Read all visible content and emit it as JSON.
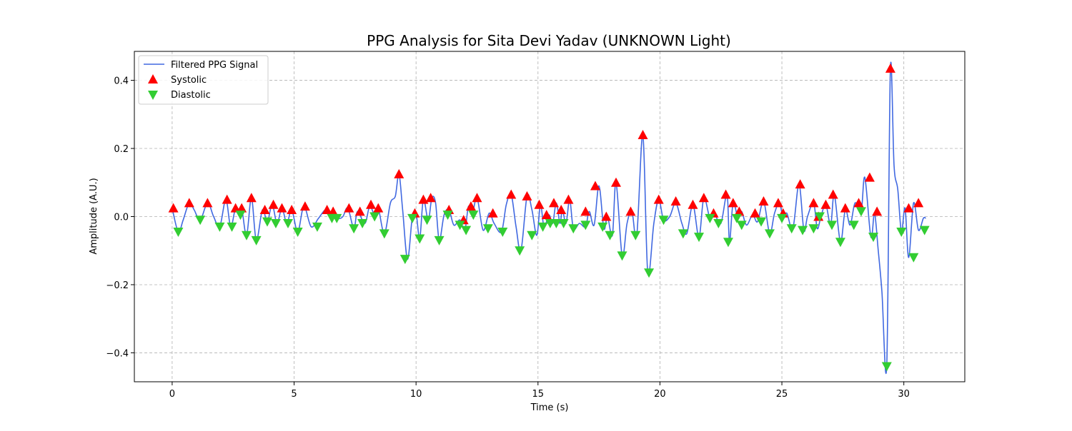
{
  "chart_data": {
    "type": "line",
    "title": "PPG Analysis for Sita Devi Yadav (UNKNOWN Light)",
    "xlabel": "Time (s)",
    "ylabel": "Amplitude (A.U.)",
    "xlim": [
      -1.55,
      32.5
    ],
    "ylim": [
      -0.485,
      0.485
    ],
    "xticks": [
      0,
      5,
      10,
      15,
      20,
      25,
      30
    ],
    "xtick_labels": [
      "0",
      "5",
      "10",
      "15",
      "20",
      "25",
      "30"
    ],
    "yticks": [
      -0.4,
      -0.2,
      0.0,
      0.2,
      0.4
    ],
    "ytick_labels": [
      "−0.4",
      "−0.2",
      "0.0",
      "0.2",
      "0.4"
    ],
    "grid": true,
    "legend_position": "upper-left",
    "colors": {
      "signal": "#4169e1",
      "systolic": "#ff0000",
      "diastolic": "#32cd32"
    },
    "series": [
      {
        "name": "Filtered PPG Signal",
        "style": "line",
        "x": [
          0.0,
          0.25,
          0.45,
          0.7,
          0.9,
          1.15,
          1.45,
          1.7,
          1.95,
          2.2,
          2.4,
          2.6,
          2.75,
          2.85,
          3.05,
          3.25,
          3.45,
          3.7,
          3.9,
          4.1,
          4.3,
          4.5,
          4.7,
          4.9,
          5.15,
          5.4,
          5.7,
          6.0,
          6.3,
          6.5,
          6.6,
          6.8,
          7.0,
          7.2,
          7.45,
          7.6,
          7.9,
          8.1,
          8.3,
          8.45,
          8.7,
          8.95,
          9.15,
          9.3,
          9.45,
          9.65,
          9.85,
          10.0,
          10.15,
          10.3,
          10.5,
          10.65,
          10.8,
          10.95,
          11.15,
          11.35,
          11.55,
          11.8,
          12.0,
          12.15,
          12.3,
          12.5,
          12.75,
          13.0,
          13.2,
          13.5,
          13.7,
          13.9,
          14.1,
          14.3,
          14.55,
          14.75,
          14.95,
          15.1,
          15.25,
          15.45,
          15.6,
          15.75,
          15.9,
          16.0,
          16.15,
          16.3,
          16.45,
          16.7,
          16.95,
          17.1,
          17.3,
          17.5,
          17.7,
          17.85,
          18.05,
          18.2,
          18.45,
          18.65,
          18.85,
          19.05,
          19.3,
          19.5,
          19.75,
          19.95,
          20.15,
          20.4,
          20.65,
          20.9,
          21.1,
          21.35,
          21.6,
          21.8,
          22.05,
          22.25,
          22.5,
          22.75,
          22.85,
          23.0,
          23.2,
          23.35,
          23.55,
          23.8,
          24.0,
          24.25,
          24.5,
          24.7,
          24.9,
          25.05,
          25.2,
          25.45,
          25.7,
          25.9,
          26.05,
          26.3,
          26.45,
          26.6,
          26.8,
          27.0,
          27.15,
          27.4,
          27.6,
          27.8,
          28.0,
          28.25,
          28.4,
          28.65,
          28.8,
          28.95,
          29.1,
          29.3,
          29.45,
          29.6,
          29.75,
          29.9,
          30.05,
          30.2,
          30.4,
          30.6,
          30.8,
          30.9
        ],
        "y": [
          0.025,
          -0.045,
          -0.01,
          0.04,
          0.02,
          -0.01,
          0.04,
          0.0,
          -0.03,
          0.05,
          -0.03,
          0.025,
          0.005,
          0.025,
          -0.055,
          0.055,
          -0.07,
          0.02,
          -0.015,
          0.035,
          -0.02,
          0.025,
          -0.02,
          0.02,
          -0.045,
          0.03,
          -0.03,
          -0.005,
          0.02,
          -0.005,
          0.015,
          -0.005,
          0.0,
          0.025,
          -0.035,
          0.015,
          -0.02,
          0.03,
          0.005,
          0.025,
          -0.05,
          0.04,
          0.06,
          0.125,
          0.02,
          -0.125,
          0.0,
          0.01,
          -0.065,
          0.05,
          -0.01,
          0.055,
          0.04,
          -0.07,
          0.005,
          0.02,
          -0.025,
          -0.01,
          -0.04,
          0.03,
          0.005,
          0.055,
          -0.04,
          0.01,
          -0.02,
          -0.045,
          0.035,
          0.065,
          -0.03,
          -0.1,
          0.06,
          0.02,
          -0.055,
          0.035,
          -0.03,
          0.005,
          -0.02,
          0.04,
          -0.02,
          0.02,
          -0.02,
          0.05,
          -0.035,
          -0.02,
          -0.03,
          0.015,
          -0.025,
          0.09,
          -0.035,
          0.0,
          -0.055,
          0.1,
          -0.115,
          -0.02,
          0.015,
          -0.055,
          0.24,
          -0.165,
          -0.02,
          0.05,
          -0.01,
          0.0,
          0.04,
          -0.02,
          -0.05,
          0.035,
          -0.06,
          0.055,
          -0.005,
          0.005,
          -0.02,
          0.065,
          -0.075,
          0.04,
          -0.005,
          0.015,
          -0.025,
          0.005,
          -0.015,
          0.045,
          -0.05,
          0.01,
          0.04,
          -0.005,
          0.01,
          -0.035,
          0.095,
          -0.04,
          0.0,
          0.04,
          -0.035,
          0.0,
          0.035,
          -0.025,
          0.065,
          -0.075,
          0.02,
          -0.025,
          0.04,
          0.015,
          0.115,
          -0.06,
          0.01,
          -0.1,
          -0.22,
          -0.435,
          0.435,
          0.15,
          0.08,
          -0.045,
          0.025,
          -0.12,
          0.04,
          -0.04,
          -0.005,
          -0.005
        ]
      },
      {
        "name": "Systolic",
        "style": "marker-up",
        "x": [
          0.05,
          0.7,
          1.45,
          2.25,
          2.6,
          2.85,
          3.25,
          3.8,
          4.15,
          4.5,
          4.9,
          5.45,
          6.35,
          6.6,
          7.25,
          7.7,
          8.15,
          8.45,
          9.3,
          9.95,
          10.3,
          10.6,
          11.35,
          11.95,
          12.25,
          12.5,
          13.15,
          13.9,
          14.55,
          15.05,
          15.35,
          15.65,
          15.95,
          16.25,
          16.95,
          17.35,
          17.8,
          18.2,
          18.8,
          19.3,
          19.95,
          20.65,
          21.35,
          21.8,
          22.2,
          22.7,
          23.0,
          23.25,
          23.9,
          24.25,
          24.85,
          25.05,
          25.75,
          26.3,
          26.5,
          26.8,
          27.1,
          27.6,
          28.15,
          28.6,
          28.9,
          29.45,
          30.2,
          30.6
        ],
        "y": [
          0.025,
          0.04,
          0.04,
          0.05,
          0.025,
          0.025,
          0.055,
          0.02,
          0.035,
          0.025,
          0.02,
          0.03,
          0.02,
          0.015,
          0.025,
          0.015,
          0.035,
          0.025,
          0.125,
          0.01,
          0.05,
          0.055,
          0.02,
          -0.01,
          0.03,
          0.055,
          0.01,
          0.065,
          0.06,
          0.035,
          0.005,
          0.04,
          0.02,
          0.05,
          0.015,
          0.09,
          0.0,
          0.1,
          0.015,
          0.24,
          0.05,
          0.045,
          0.035,
          0.055,
          0.01,
          0.065,
          0.04,
          0.015,
          0.01,
          0.045,
          0.04,
          0.01,
          0.095,
          0.04,
          0.0,
          0.035,
          0.065,
          0.025,
          0.04,
          0.115,
          0.015,
          0.435,
          0.025,
          0.04
        ]
      },
      {
        "name": "Diastolic",
        "style": "marker-down",
        "x": [
          0.25,
          1.15,
          1.95,
          2.45,
          2.8,
          3.05,
          3.45,
          3.9,
          4.25,
          4.75,
          5.15,
          5.95,
          6.55,
          6.75,
          7.45,
          7.8,
          8.3,
          8.7,
          9.55,
          9.85,
          10.15,
          10.45,
          10.95,
          11.3,
          11.8,
          12.05,
          12.35,
          12.95,
          13.55,
          14.25,
          14.75,
          15.2,
          15.5,
          15.75,
          16.05,
          16.45,
          16.95,
          17.65,
          17.95,
          18.45,
          19.0,
          19.55,
          20.15,
          20.95,
          21.6,
          22.05,
          22.4,
          22.8,
          23.15,
          23.35,
          24.15,
          24.5,
          25.0,
          25.4,
          25.85,
          26.3,
          26.55,
          27.05,
          27.4,
          27.95,
          28.25,
          28.75,
          29.3,
          29.9,
          30.4,
          30.85
        ],
        "y": [
          -0.045,
          -0.01,
          -0.03,
          -0.03,
          0.005,
          -0.055,
          -0.07,
          -0.015,
          -0.02,
          -0.02,
          -0.045,
          -0.03,
          -0.005,
          -0.005,
          -0.035,
          -0.02,
          0.0,
          -0.05,
          -0.125,
          -0.005,
          -0.065,
          -0.01,
          -0.07,
          0.005,
          -0.025,
          -0.04,
          0.005,
          -0.035,
          -0.045,
          -0.1,
          -0.055,
          -0.03,
          -0.02,
          -0.02,
          -0.02,
          -0.035,
          -0.025,
          -0.03,
          -0.055,
          -0.115,
          -0.055,
          -0.165,
          -0.01,
          -0.05,
          -0.06,
          -0.005,
          -0.02,
          -0.075,
          -0.005,
          -0.025,
          -0.015,
          -0.05,
          -0.005,
          -0.035,
          -0.04,
          -0.035,
          0.0,
          -0.025,
          -0.075,
          -0.025,
          0.015,
          -0.06,
          -0.44,
          -0.045,
          -0.12,
          -0.04
        ]
      }
    ]
  }
}
